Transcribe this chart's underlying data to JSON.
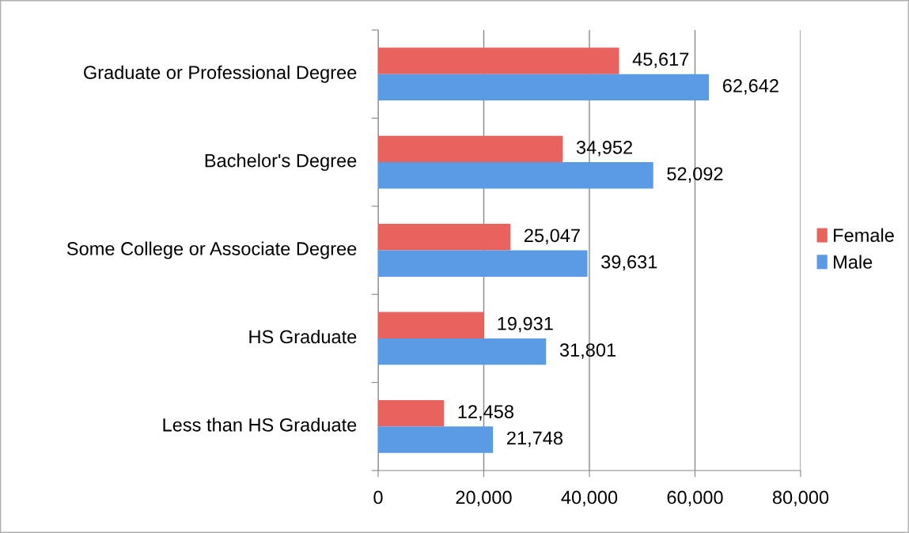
{
  "chart_data": {
    "type": "bar",
    "orientation": "horizontal",
    "categories": [
      "Graduate or Professional Degree",
      "Bachelor's Degree",
      "Some College or Associate Degree",
      "HS Graduate",
      "Less than HS Graduate"
    ],
    "series": [
      {
        "name": "Female",
        "color": "#e8625e",
        "values": [
          45617,
          34952,
          25047,
          19931,
          12458
        ],
        "value_labels": [
          "45,617",
          "34,952",
          "25,047",
          "19,931",
          "12,458"
        ]
      },
      {
        "name": "Male",
        "color": "#5b9be6",
        "values": [
          62642,
          52092,
          39631,
          31801,
          21748
        ],
        "value_labels": [
          "62,642",
          "52,092",
          "39,631",
          "31,801",
          "21,748"
        ]
      }
    ],
    "xlim": [
      0,
      80000
    ],
    "xticks": [
      {
        "value": 0,
        "label": "0"
      },
      {
        "value": 20000,
        "label": "20,000"
      },
      {
        "value": 40000,
        "label": "40,000"
      },
      {
        "value": 60000,
        "label": "60,000"
      },
      {
        "value": 80000,
        "label": "80,000"
      }
    ],
    "grid": "x",
    "legend": "right"
  }
}
